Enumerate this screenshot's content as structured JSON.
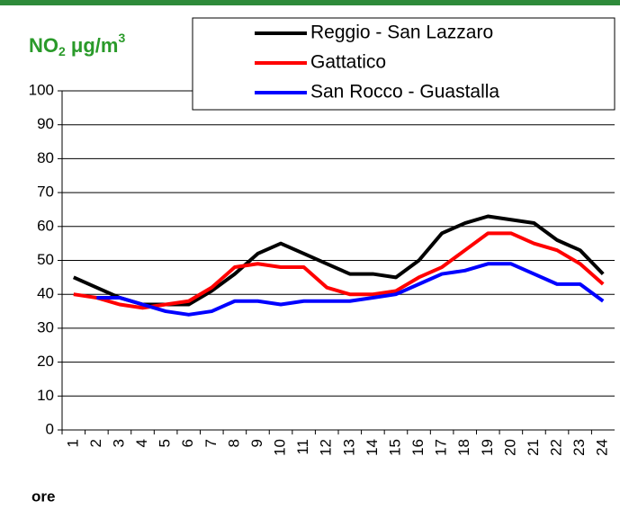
{
  "chart_data": {
    "type": "line",
    "title": {
      "base": "NO",
      "sub": "2",
      "unit": " μg/m",
      "sup": "3"
    },
    "x_label": "ore",
    "categories": [
      "1",
      "2",
      "3",
      "4",
      "5",
      "6",
      "7",
      "8",
      "9",
      "10",
      "11",
      "12",
      "13",
      "14",
      "15",
      "16",
      "17",
      "18",
      "19",
      "20",
      "21",
      "22",
      "23",
      "24"
    ],
    "series": [
      {
        "name": "Reggio - San Lazzaro",
        "color": "#000000",
        "values": [
          45,
          42,
          39,
          37,
          37,
          37,
          41,
          46,
          52,
          55,
          52,
          49,
          46,
          46,
          45,
          50,
          58,
          61,
          63,
          62,
          61,
          56,
          53,
          46
        ]
      },
      {
        "name": "Gattatico",
        "color": "#ff0000",
        "values": [
          40,
          39,
          37,
          36,
          37,
          38,
          42,
          48,
          49,
          48,
          48,
          42,
          40,
          40,
          41,
          45,
          48,
          53,
          58,
          58,
          55,
          53,
          49,
          43
        ]
      },
      {
        "name": "San Rocco - Guastalla",
        "color": "#0000ff",
        "values": [
          null,
          39,
          39,
          37,
          35,
          34,
          35,
          38,
          38,
          37,
          38,
          38,
          38,
          39,
          40,
          43,
          46,
          47,
          49,
          49,
          46,
          43,
          43,
          38
        ]
      }
    ],
    "ylim": [
      0,
      100
    ],
    "yticks": [
      0,
      10,
      20,
      30,
      40,
      50,
      60,
      70,
      80,
      90,
      100
    ],
    "grid": true,
    "legend": "top-right"
  }
}
